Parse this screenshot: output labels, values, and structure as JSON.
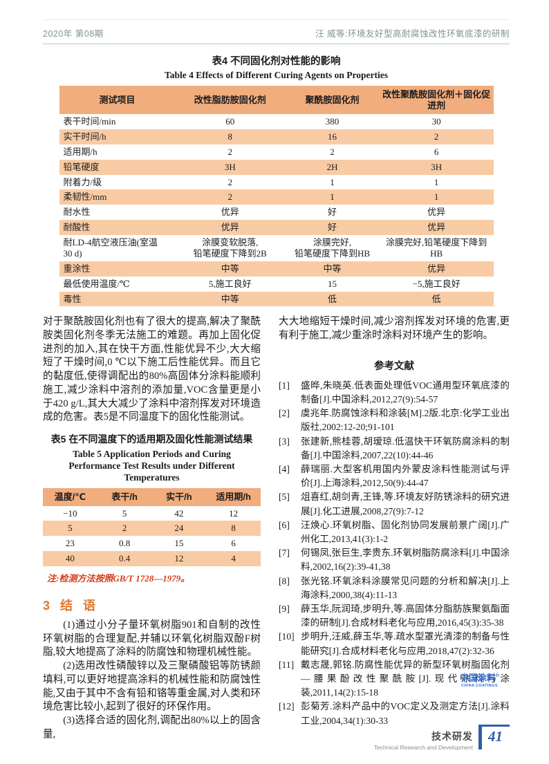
{
  "header": {
    "issue": "2020年 第08期",
    "running_title": "汪  威等:环境友好型高耐腐蚀改性环氧底漆的研制"
  },
  "table4": {
    "caption_zh": "表4  不同固化剂对性能的影响",
    "caption_en": "Table 4   Effects of Different Curing Agents on Properties",
    "headers": [
      "测试项目",
      "改性脂肪胺固化剂",
      "聚酰胺固化剂",
      "改性聚酰胺固化剂＋固化促进剂"
    ],
    "rows": [
      [
        "表干时间/min",
        "60",
        "380",
        "30"
      ],
      [
        "实干时间/h",
        "8",
        "16",
        "2"
      ],
      [
        "适用期/h",
        "2",
        "2",
        "6"
      ],
      [
        "铅笔硬度",
        "3H",
        "2H",
        "3H"
      ],
      [
        "附着力/级",
        "2",
        "1",
        "1"
      ],
      [
        "柔韧性/mm",
        "2",
        "1",
        "1"
      ],
      [
        "耐水性",
        "优异",
        "好",
        "优异"
      ],
      [
        "耐酸性",
        "优异",
        "好",
        "优异"
      ],
      [
        "耐LD-4航空液压油(室温\n30 d)",
        "涂膜变软脱落,\n铅笔硬度下降到2B",
        "涂膜完好,\n铅笔硬度下降到HB",
        "涂膜完好,铅笔硬度下降到HB"
      ],
      [
        "重涂性",
        "中等",
        "中等",
        "优异"
      ],
      [
        "最低使用温度/℃",
        "5,施工良好",
        "15",
        "−5,施工良好"
      ],
      [
        "毒性",
        "中等",
        "低",
        "低"
      ]
    ]
  },
  "body_left": {
    "paragraph": "对于聚酰胺固化剂也有了很大的提高,解决了聚酰胺类固化剂冬季无法施工的难题。再加上固化促进剂的加入,其在快干方面,性能优异不少,大大缩短了干燥时间,0 ℃以下施工后性能优异。而且它的黏度低,使得调配出的80%高固体分涂料能顺利施工,减少涂料中溶剂的添加量,VOC含量更是小于420 g/L,其大大减少了涂料中溶剂挥发对环境造成的危害。表5是不同温度下的固化性能测试。",
    "table5": {
      "caption_zh": "表5  在不同温度下的适用期及固化性能测试结果",
      "caption_en": "Table 5   Application Periods and Curing Performance Test Results under Different Temperatures",
      "headers": [
        "温度/℃",
        "表干/h",
        "实干/h",
        "适用期/h"
      ],
      "rows": [
        [
          "−10",
          "5",
          "42",
          "12"
        ],
        [
          "5",
          "2",
          "24",
          "8"
        ],
        [
          "23",
          "0.8",
          "15",
          "6"
        ],
        [
          "40",
          "0.4",
          "12",
          "4"
        ]
      ],
      "note": "注:检测方法按照GB/T 1728—1979。"
    },
    "conclusion": {
      "heading": "3  结  语",
      "paragraphs": [
        "(1)通过小分子量环氧树脂901和自制的改性环氧树脂的合理复配,并辅以环氧化树脂双酚F树脂,较大地提高了涂料的防腐蚀和物理机械性能。",
        "(2)选用改性磷酸锌以及三聚磷酸铝等防锈颜填料,可以更好地提高涂料的机械性能和防腐蚀性能,又由于其中不含有铅和铬等重金属,对人类和环境危害比较小,起到了很好的环保作用。",
        "(3)选择合适的固化剂,调配出80%以上的固含量,"
      ]
    }
  },
  "body_right": {
    "paragraph": "大大地缩短干燥时间,减少溶剂挥发对环境的危害,更有利于施工,减少重涂时涂料对环境产生的影响。",
    "references_title": "参考文献",
    "references": [
      {
        "num": "[1]",
        "text": "盛晔,朱晓英.低表面处理低VOC通用型环氧底漆的制备[J].中国涂料,2012,27(9):54-57"
      },
      {
        "num": "[2]",
        "text": "虞兆年.防腐蚀涂料和涂装[M].2版.北京:化学工业出版社,2002:12-20;91-101"
      },
      {
        "num": "[3]",
        "text": "张建新,熊桂蓉,胡瑷琼.低温快干环氧防腐涂料的制备[J].中国涂料,2007,22(10):44-46"
      },
      {
        "num": "[4]",
        "text": "薛瑞丽.大型客机用国内外蒙皮涂料性能测试与评价[J].上海涂料,2012,50(9):44-47"
      },
      {
        "num": "[5]",
        "text": "俎喜红,胡剑青,王锋,等.环境友好防锈涂料的研究进展[J].化工进展,2008,27(9):7-12"
      },
      {
        "num": "[6]",
        "text": "汪焕心.环氧树脂、固化剂协同发展前景广阔[J].广州化工,2013,41(3):1-2"
      },
      {
        "num": "[7]",
        "text": "何锡凤,张巨生,李贵东.环氧树脂防腐涂料[J].中国涂料,2002,16(2):39-41,38"
      },
      {
        "num": "[8]",
        "text": "张光铭.环氧涂料涂膜常见问题的分析和解决[J].上海涂料,2000,38(4):11-13"
      },
      {
        "num": "[9]",
        "text": "薛玉华,阮润琦,步明升,等.高固体分脂肪族聚氨酯面漆的研制[J].合成材料老化与应用,2016,45(3):35-38"
      },
      {
        "num": "[10]",
        "text": "步明升,汪威,薛玉华,等.疏水型罩光清漆的制备与性能研究[J].合成材料老化与应用,2018,47(2):32-36"
      },
      {
        "num": "[11]",
        "text": "戴志晟,郭铭.防腐性能优异的新型环氧树脂固化剂—腰果酚改性聚酰胺[J].现代涂料与涂装,2011,14(2):15-18"
      },
      {
        "num": "[12]",
        "text": "彭菊芳.涂料产品中的VOC定义及测定方法[J].涂料工业,2004,34(1):30-33"
      }
    ]
  },
  "logo": {
    "zh": "中国涂料",
    "reg": "®",
    "en": "CHINA COATINGS"
  },
  "footer": {
    "zh": "技术研发",
    "en": "Technical Research and Development",
    "page": "41"
  }
}
